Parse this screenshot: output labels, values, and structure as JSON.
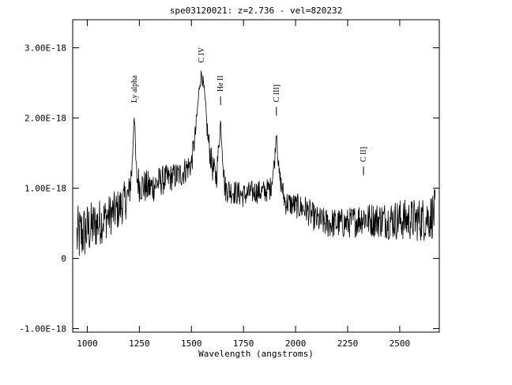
{
  "chart_data": {
    "type": "line",
    "title": "spe03120021: z=2.736 - vel=820232",
    "xlabel": "Wavelength (angstroms)",
    "ylabel": "",
    "xlim": [
      930,
      2690
    ],
    "ylim": [
      -1.05e-18,
      3.4e-18
    ],
    "x_ticks": [
      {
        "value": 1000,
        "label": "1000"
      },
      {
        "value": 1250,
        "label": "1250"
      },
      {
        "value": 1500,
        "label": "1500"
      },
      {
        "value": 1750,
        "label": "1750"
      },
      {
        "value": 2000,
        "label": "2000"
      },
      {
        "value": 2250,
        "label": "2250"
      },
      {
        "value": 2500,
        "label": "2500"
      }
    ],
    "y_ticks": [
      {
        "value": -1e-18,
        "label": "-1.00E-18"
      },
      {
        "value": 0,
        "label": "0"
      },
      {
        "value": 1e-18,
        "label": "1.00E-18"
      },
      {
        "value": 2e-18,
        "label": "2.00E-18"
      },
      {
        "value": 3e-18,
        "label": "3.00E-18"
      }
    ],
    "grid": false,
    "line_color": "#000000",
    "annotations": [
      {
        "label": "Ly alpha",
        "x": 1225,
        "y": 2.15e-18,
        "marker": false
      },
      {
        "label": "C IV",
        "x": 1549,
        "y": 2.72e-18,
        "marker": false
      },
      {
        "label": "He II",
        "x": 1640,
        "y": 2.15e-18,
        "marker": true
      },
      {
        "label": "C III]",
        "x": 1908,
        "y": 2e-18,
        "marker": true
      },
      {
        "label": "C II]",
        "x": 2326,
        "y": 1.15e-18,
        "marker": true
      }
    ],
    "series": [
      {
        "x": [
          950,
          1000,
          1050,
          1100,
          1150,
          1200,
          1215,
          1225,
          1235,
          1250,
          1300,
          1350,
          1400,
          1450,
          1500,
          1520,
          1540,
          1549,
          1560,
          1580,
          1600,
          1620,
          1640,
          1660,
          1700,
          1750,
          1800,
          1850,
          1880,
          1900,
          1908,
          1920,
          1950,
          2000,
          2050,
          2100,
          2150,
          2200,
          2250,
          2300,
          2326,
          2350,
          2400,
          2450,
          2500,
          2550,
          2600,
          2650,
          2670
        ],
        "y": [
          3e-19,
          4e-19,
          5e-19,
          6e-19,
          7e-19,
          9e-19,
          1.3e-18,
          2.1e-18,
          1.2e-18,
          1.05e-18,
          1e-18,
          1.1e-18,
          1.15e-18,
          1.2e-18,
          1.35e-18,
          1.8e-18,
          2.5e-18,
          2.65e-18,
          2.4e-18,
          1.7e-18,
          1.3e-18,
          1.15e-18,
          1.95e-18,
          1e-18,
          9.5e-19,
          9e-19,
          9.5e-19,
          9.5e-19,
          1e-18,
          1.4e-18,
          1.85e-18,
          1.2e-18,
          8e-19,
          7.5e-19,
          7e-19,
          5.5e-19,
          5e-19,
          5e-19,
          5e-19,
          5.5e-19,
          6e-19,
          5.5e-19,
          5.5e-19,
          5.5e-19,
          5.5e-19,
          5.5e-19,
          5.5e-19,
          6e-19,
          6.5e-19
        ],
        "noise_amplitude": [
          4.5e-19,
          4e-19,
          3.5e-19,
          3e-19,
          3e-19,
          2.8e-19,
          2.5e-19,
          1e-19,
          2.5e-19,
          2.5e-19,
          2.5e-19,
          2.2e-19,
          2e-19,
          2e-19,
          2e-19,
          1.5e-19,
          1e-19,
          1e-19,
          1.2e-19,
          2e-19,
          2e-19,
          2e-19,
          1e-19,
          2e-19,
          1.8e-19,
          1.8e-19,
          1.7e-19,
          1.7e-19,
          1.7e-19,
          1.2e-19,
          8e-20,
          1.5e-19,
          1.8e-19,
          1.8e-19,
          2e-19,
          2e-19,
          2.2e-19,
          2.2e-19,
          2.2e-19,
          2.4e-19,
          2.5e-19,
          2.5e-19,
          2.6e-19,
          2.8e-19,
          3e-19,
          3e-19,
          3.2e-19,
          3.4e-19,
          3.5e-19
        ]
      }
    ]
  }
}
